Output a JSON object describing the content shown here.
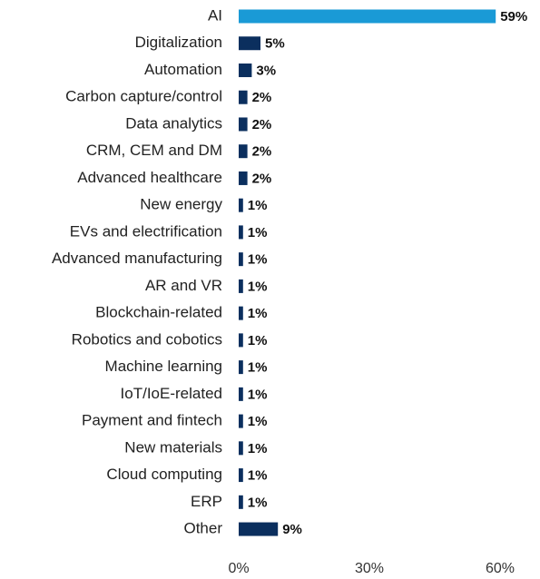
{
  "chart_data": {
    "type": "bar",
    "orientation": "horizontal",
    "categories": [
      "AI",
      "Digitalization",
      "Automation",
      "Carbon capture/control",
      "Data analytics",
      "CRM, CEM and DM",
      "Advanced healthcare",
      "New energy",
      "EVs and electrification",
      "Advanced manufacturing",
      "AR and VR",
      "Blockchain-related",
      "Robotics and cobotics",
      "Machine learning",
      "IoT/IoE-related",
      "Payment and fintech",
      "New materials",
      "Cloud computing",
      "ERP",
      "Other"
    ],
    "values": [
      59,
      5,
      3,
      2,
      2,
      2,
      2,
      1,
      1,
      1,
      1,
      1,
      1,
      1,
      1,
      1,
      1,
      1,
      1,
      9
    ],
    "value_labels": [
      "59%",
      "5%",
      "3%",
      "2%",
      "2%",
      "2%",
      "2%",
      "1%",
      "1%",
      "1%",
      "1%",
      "1%",
      "1%",
      "1%",
      "1%",
      "1%",
      "1%",
      "1%",
      "1%",
      "9%"
    ],
    "colors": [
      "#1a9ad6",
      "#0b2f5e",
      "#0b2f5e",
      "#0b2f5e",
      "#0b2f5e",
      "#0b2f5e",
      "#0b2f5e",
      "#0b2f5e",
      "#0b2f5e",
      "#0b2f5e",
      "#0b2f5e",
      "#0b2f5e",
      "#0b2f5e",
      "#0b2f5e",
      "#0b2f5e",
      "#0b2f5e",
      "#0b2f5e",
      "#0b2f5e",
      "#0b2f5e",
      "#0b2f5e"
    ],
    "xlim": [
      0,
      60
    ],
    "xticks": [
      {
        "value": 0,
        "label": "0%"
      },
      {
        "value": 30,
        "label": "30%"
      },
      {
        "value": 60,
        "label": "60%"
      }
    ],
    "grid": false
  }
}
